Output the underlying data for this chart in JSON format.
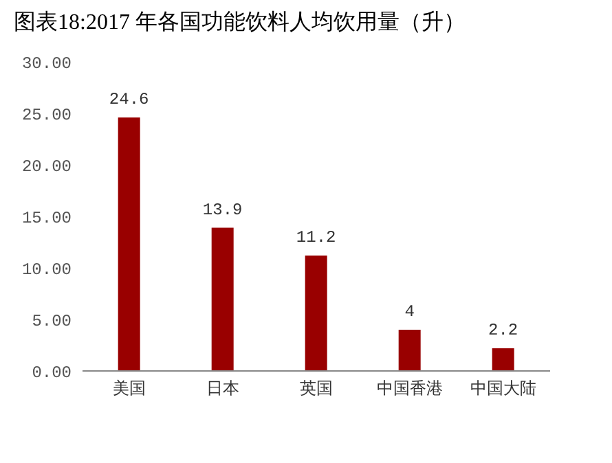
{
  "chart_data": {
    "type": "bar",
    "title": "图表18:2017 年各国功能饮料人均饮用量（升）",
    "categories": [
      "美国",
      "日本",
      "英国",
      "中国香港",
      "中国大陆"
    ],
    "values": [
      24.6,
      13.9,
      11.2,
      4,
      2.2
    ],
    "color": "#990000",
    "ylim": [
      0,
      30
    ],
    "yticks": [
      {
        "value": 0,
        "label": "0.00"
      },
      {
        "value": 5,
        "label": "5.00"
      },
      {
        "value": 10,
        "label": "10.00"
      },
      {
        "value": 15,
        "label": "15.00"
      },
      {
        "value": 20,
        "label": "20.00"
      },
      {
        "value": 25,
        "label": "25.00"
      },
      {
        "value": 30,
        "label": "30.00"
      }
    ],
    "grid": false,
    "legend": false,
    "data_labels": true
  }
}
